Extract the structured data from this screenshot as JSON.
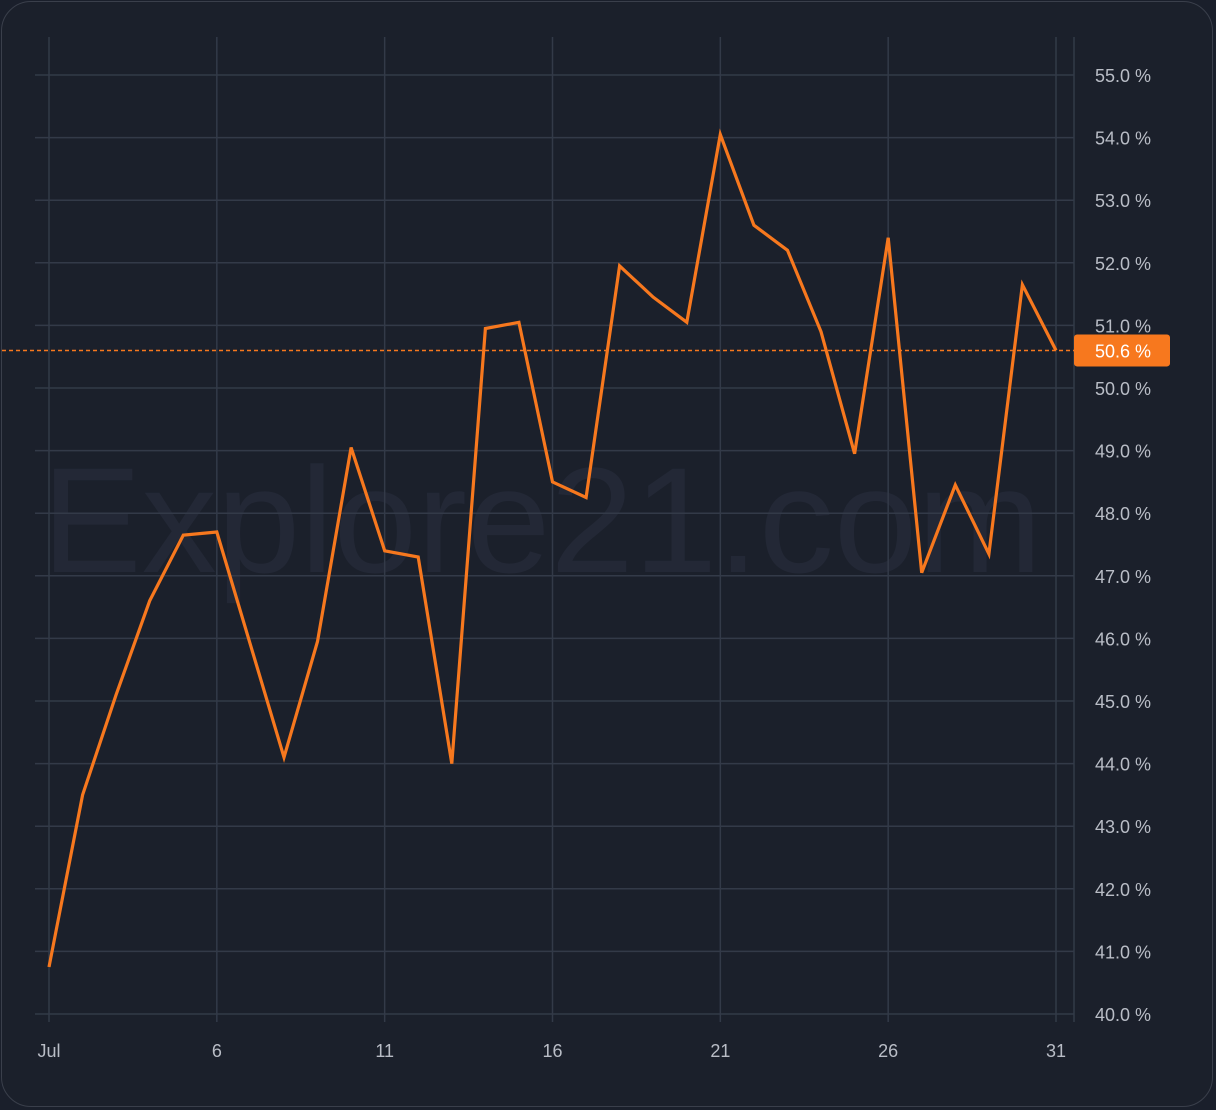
{
  "watermark": "Explore21.com",
  "colors": {
    "background": "#1b202b",
    "grid": "#333a48",
    "axis_text": "#b9bdc6",
    "line": "#f7781e",
    "badge": "#f7781e",
    "watermark": "#232836"
  },
  "chart_data": {
    "type": "line",
    "title": "",
    "xlabel": "",
    "ylabel": "",
    "x_tick_labels": [
      "Jul",
      "6",
      "11",
      "16",
      "21",
      "26",
      "31"
    ],
    "x_tick_days": [
      1,
      6,
      11,
      16,
      21,
      26,
      31
    ],
    "y_tick_values": [
      40,
      41,
      42,
      43,
      44,
      45,
      46,
      47,
      48,
      49,
      50,
      51,
      52,
      53,
      54,
      55
    ],
    "y_tick_labels": [
      "40.0 %",
      "41.0 %",
      "42.0 %",
      "43.0 %",
      "44.0 %",
      "45.0 %",
      "46.0 %",
      "47.0 %",
      "48.0 %",
      "49.0 %",
      "50.0 %",
      "51.0 %",
      "52.0 %",
      "53.0 %",
      "54.0 %",
      "55.0 %"
    ],
    "ylim": [
      40,
      55.6
    ],
    "xlim": [
      1,
      31
    ],
    "grid": true,
    "series": [
      {
        "x": [
          1,
          2,
          3,
          4,
          5,
          6,
          7,
          8,
          9,
          10,
          11,
          12,
          13,
          14,
          15,
          16,
          17,
          18,
          19,
          20,
          21,
          22,
          23,
          24,
          25,
          26,
          27,
          28,
          29,
          30,
          31
        ],
        "values": [
          40.75,
          43.5,
          45.1,
          46.6,
          47.65,
          47.7,
          45.9,
          44.1,
          45.95,
          49.05,
          47.4,
          47.3,
          44.0,
          50.95,
          51.05,
          48.5,
          48.25,
          51.95,
          51.45,
          51.05,
          54.05,
          52.6,
          52.2,
          50.9,
          48.95,
          52.4,
          47.05,
          48.45,
          47.35,
          51.65,
          50.6
        ]
      }
    ],
    "last_value": 50.6,
    "last_value_label": "50.6 %"
  }
}
